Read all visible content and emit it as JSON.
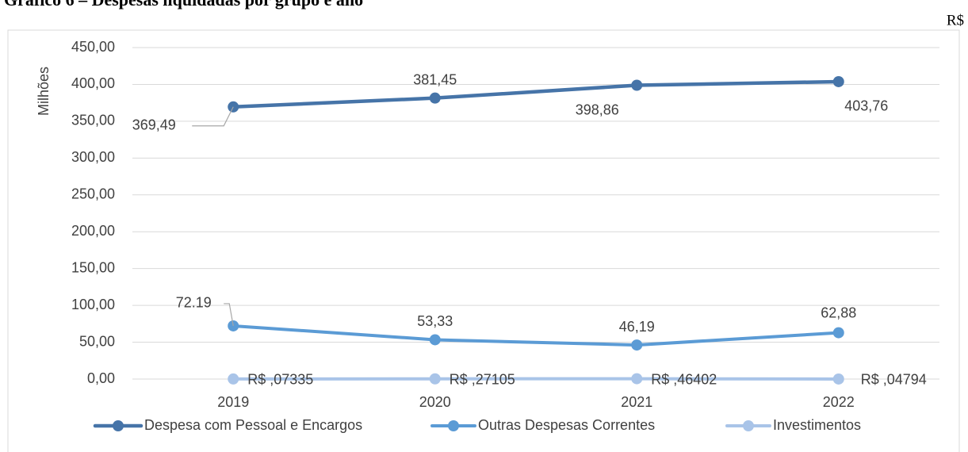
{
  "chart_data": {
    "type": "line",
    "title": "Gráfico 6 – Despesas liquidadas por grupo e ano",
    "unit_label": "R$",
    "y_label": "Milhões",
    "categories": [
      "2019",
      "2020",
      "2021",
      "2022"
    ],
    "series": [
      {
        "name": "Despesa com Pessoal e Encargos",
        "color": "#4674a8",
        "values": [
          369.49,
          381.45,
          398.86,
          403.76
        ],
        "value_labels": [
          "369,49",
          "381,45",
          "398,86",
          "403,76"
        ]
      },
      {
        "name": "Outras Despesas Correntes",
        "color": "#5b9bd5",
        "values": [
          72.19,
          53.33,
          46.19,
          62.88
        ],
        "value_labels": [
          "72.19",
          "53,33",
          "46,19",
          "62,88"
        ]
      },
      {
        "name": "Investimentos",
        "color": "#a9c4e8",
        "values": [
          0.07335,
          0.27105,
          0.46402,
          0.04794
        ],
        "value_labels": [
          "R$ ,07335",
          "R$ ,27105",
          "R$ ,46402",
          "R$ ,04794"
        ]
      }
    ],
    "ylim": [
      0,
      450
    ],
    "yticks": [
      {
        "value": 0,
        "label": "0,00"
      },
      {
        "value": 50,
        "label": "50,00"
      },
      {
        "value": 100,
        "label": "100,00"
      },
      {
        "value": 150,
        "label": "150,00"
      },
      {
        "value": 200,
        "label": "200,00"
      },
      {
        "value": 250,
        "label": "250,00"
      },
      {
        "value": 300,
        "label": "300,00"
      },
      {
        "value": 350,
        "label": "350,00"
      },
      {
        "value": 400,
        "label": "400,00"
      },
      {
        "value": 450,
        "label": "450,00"
      }
    ],
    "grid": true,
    "legend": "bottom"
  }
}
